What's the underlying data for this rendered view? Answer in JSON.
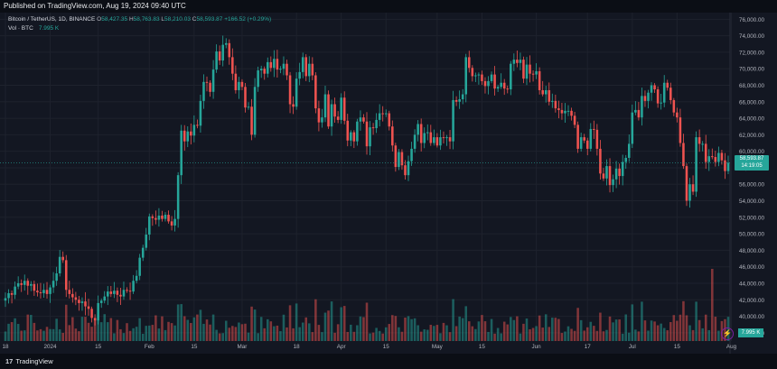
{
  "header": {
    "published": "Published on TradingView.com, Aug 19, 2024 09:40 UTC"
  },
  "legend": {
    "symbol": "Bitcoin / TetherUS, 1D, BINANCE",
    "o_label": "O",
    "o_val": "58,427.35",
    "h_label": "H",
    "h_val": "58,763.83",
    "l_label": "L",
    "l_val": "58,210.03",
    "c_label": "C",
    "c_val": "58,593.87",
    "change": "+166.52 (+0.29%)",
    "vol_label": "Vol · BTC",
    "vol_val": "7.995 K"
  },
  "price_tag": {
    "price": "58,593.87",
    "countdown": "14:19:05"
  },
  "vol_tag": "7.995 K",
  "footer": {
    "logo": "17",
    "brand": "TradingView"
  },
  "colors": {
    "up": "#26a69a",
    "down": "#ef5350",
    "bg": "#131722",
    "grid": "#1e222d"
  },
  "chart_data": {
    "type": "candlestick",
    "y_ticks": [
      "76,000.00",
      "74,000.00",
      "72,000.00",
      "70,000.00",
      "68,000.00",
      "66,000.00",
      "64,000.00",
      "62,000.00",
      "60,000.00",
      "58,000.00",
      "56,000.00",
      "54,000.00",
      "52,000.00",
      "50,000.00",
      "48,000.00",
      "46,000.00",
      "44,000.00",
      "42,000.00",
      "40,000.00",
      "38,000.00"
    ],
    "y_tick_values": [
      76000,
      74000,
      72000,
      70000,
      68000,
      66000,
      64000,
      62000,
      60000,
      58000,
      56000,
      54000,
      52000,
      50000,
      48000,
      46000,
      44000,
      42000,
      40000,
      38000
    ],
    "x_ticks": [
      "18",
      "2024",
      "15",
      "Feb",
      "15",
      "Mar",
      "18",
      "Apr",
      "15",
      "May",
      "15",
      "Jun",
      "17",
      "Jul",
      "15",
      "Aug",
      "19"
    ],
    "x_tick_days": [
      0,
      14,
      29,
      45,
      59,
      74,
      91,
      105,
      119,
      135,
      149,
      166,
      182,
      196,
      210,
      227,
      245
    ],
    "ylim": [
      37000,
      76800
    ],
    "closes": [
      42200,
      42800,
      42600,
      43600,
      44000,
      43800,
      44300,
      43700,
      43900,
      43100,
      42900,
      42800,
      43200,
      42700,
      43500,
      44300,
      45200,
      47200,
      46800,
      43200,
      42700,
      42300,
      42000,
      41600,
      41800,
      41200,
      40900,
      39800,
      39500,
      41600,
      41900,
      42400,
      43000,
      42700,
      43100,
      42600,
      42400,
      43200,
      43100,
      43000,
      44300,
      44900,
      47100,
      48300,
      49900,
      52100,
      51900,
      51700,
      52200,
      51800,
      52300,
      51500,
      51000,
      51800,
      57100,
      62500,
      61200,
      62400,
      61900,
      63200,
      63100,
      66100,
      68400,
      68300,
      67200,
      69900,
      72100,
      71000,
      72900,
      73100,
      71400,
      69400,
      67400,
      68400,
      67800,
      65300,
      65400,
      62000,
      67800,
      69800,
      70000,
      69400,
      70800,
      70100,
      71200,
      69900,
      70000,
      70600,
      69200,
      65700,
      65400,
      68800,
      69600,
      71400,
      69100,
      70600,
      69200,
      65200,
      63500,
      64100,
      66900,
      63000,
      65700,
      64200,
      63800,
      66500,
      63700,
      61300,
      62300,
      61200,
      63600,
      64100,
      63600,
      60600,
      62900,
      62800,
      63800,
      64600,
      64500,
      64600,
      63000,
      60700,
      58100,
      59900,
      58300,
      57100,
      58800,
      60300,
      62000,
      63300,
      61000,
      62200,
      62300,
      61000,
      61700,
      60700,
      61700,
      61600,
      61700,
      61200,
      66200,
      66000,
      66300,
      66900,
      71400,
      70100,
      69100,
      69200,
      69300,
      68500,
      67900,
      68500,
      69300,
      67600,
      67800,
      68300,
      67600,
      67500,
      70600,
      71100,
      70700,
      71100,
      68800,
      70500,
      69400,
      69300,
      69700,
      67400,
      66900,
      67400,
      66000,
      66100,
      65200,
      65000,
      64600,
      64900,
      64900,
      64300,
      63200,
      60300,
      61700,
      61300,
      60300,
      62700,
      62600,
      60300,
      57300,
      56700,
      58200,
      55900,
      56600,
      57900,
      57000,
      58700,
      59200,
      60900,
      64700,
      65000,
      64100,
      66700,
      66100,
      67100,
      68000,
      67500,
      65800,
      65900,
      68300,
      67700,
      66200,
      64700,
      64100,
      61000,
      58200,
      54000,
      56000,
      55100,
      61700,
      60900,
      60900,
      58700,
      59400,
      59300,
      58700,
      59800,
      58900,
      57600,
      58600
    ],
    "volume_max": 1000
  }
}
